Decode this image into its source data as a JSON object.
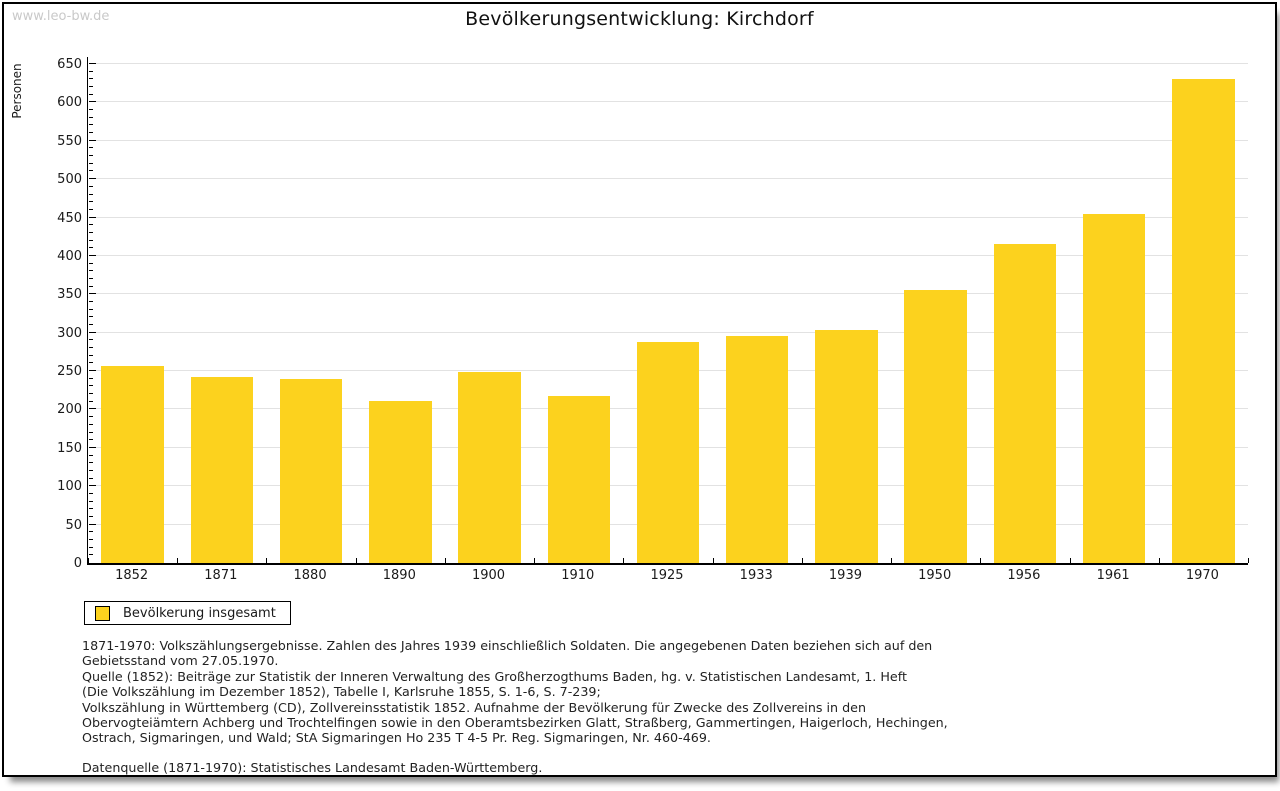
{
  "page": {
    "watermark": "www.leo-bw.de",
    "title": "Bevölkerungsentwicklung: Kirchdorf"
  },
  "chart_data": {
    "type": "bar",
    "title": "Bevölkerungsentwicklung: Kirchdorf",
    "xlabel": "",
    "ylabel": "Personen",
    "ylim": [
      0,
      650
    ],
    "ytick_step": 50,
    "ytick_minor_step": 10,
    "grid": true,
    "bar_color": "#FCD21E",
    "categories": [
      "1852",
      "1871",
      "1880",
      "1890",
      "1900",
      "1910",
      "1925",
      "1933",
      "1939",
      "1950",
      "1956",
      "1961",
      "1970"
    ],
    "values": [
      257,
      242,
      240,
      211,
      249,
      217,
      288,
      296,
      304,
      356,
      416,
      454,
      631
    ],
    "legend_entries": [
      "Bevölkerung insgesamt"
    ],
    "legend_position": "bottom-left"
  },
  "legend": {
    "label": "Bevölkerung insgesamt",
    "swatch_color": "#FCD21E"
  },
  "footer": {
    "source_lines": [
      "1871-1970: Volkszählungsergebnisse. Zahlen des Jahres 1939 einschließlich Soldaten. Die angegebenen Daten beziehen sich auf den",
      "Gebietsstand vom 27.05.1970.",
      "Quelle (1852): Beiträge zur Statistik der Inneren Verwaltung des Großherzogthums Baden, hg. v. Statistischen Landesamt, 1. Heft",
      "(Die Volkszählung im Dezember 1852), Tabelle I, Karlsruhe 1855, S. 1-6, S. 7-239;",
      "Volkszählung in Württemberg (CD), Zollvereinsstatistik 1852. Aufnahme der Bevölkerung für Zwecke des Zollvereins in den",
      "Obervogteiämtern Achberg und Trochtelfingen sowie in den Oberamtsbezirken Glatt, Straßberg, Gammertingen, Haigerloch, Hechingen,",
      "Ostrach, Sigmaringen, und Wald; StA Sigmaringen Ho 235 T 4-5 Pr. Reg. Sigmaringen, Nr. 460-469."
    ],
    "datasource": "Datenquelle (1871-1970): Statistisches Landesamt Baden-Württemberg."
  }
}
